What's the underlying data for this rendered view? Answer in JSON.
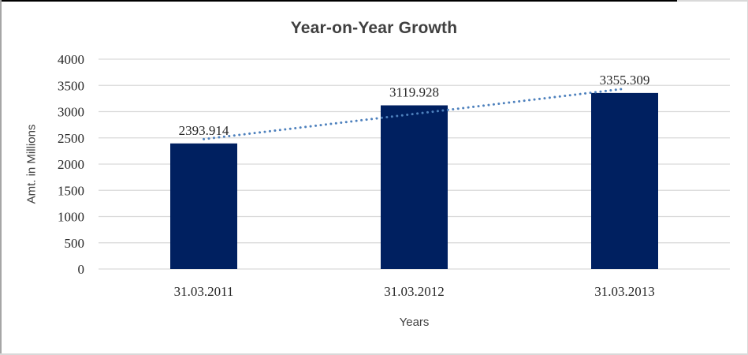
{
  "chart_data": {
    "type": "bar",
    "title": "Year-on-Year Growth",
    "xlabel": "Years",
    "ylabel": "Amt. in Millions",
    "categories": [
      "31.03.2011",
      "31.03.2012",
      "31.03.2013"
    ],
    "values": [
      2393.914,
      3119.928,
      3355.309
    ],
    "data_labels": [
      "2393.914",
      "3119.928",
      "3355.309"
    ],
    "ylim": [
      0,
      4000
    ],
    "yticks": [
      0,
      500,
      1000,
      1500,
      2000,
      2500,
      3000,
      3500,
      4000
    ],
    "grid": true,
    "legend": "none",
    "trendline": {
      "type": "linear",
      "style": "dotted"
    }
  },
  "colors": {
    "bar": "#002060",
    "trendline": "#4E81BD",
    "gridline": "#D9D9D9",
    "title_text": "#404040",
    "axis_title_text": "#404040",
    "tick_text": "#262626",
    "data_label_text": "#262626",
    "frame_border_dark": "#000000",
    "frame_border_mid": "#A6A6A6",
    "frame_border_light": "#D9D9D9",
    "background": "#FFFFFF"
  }
}
